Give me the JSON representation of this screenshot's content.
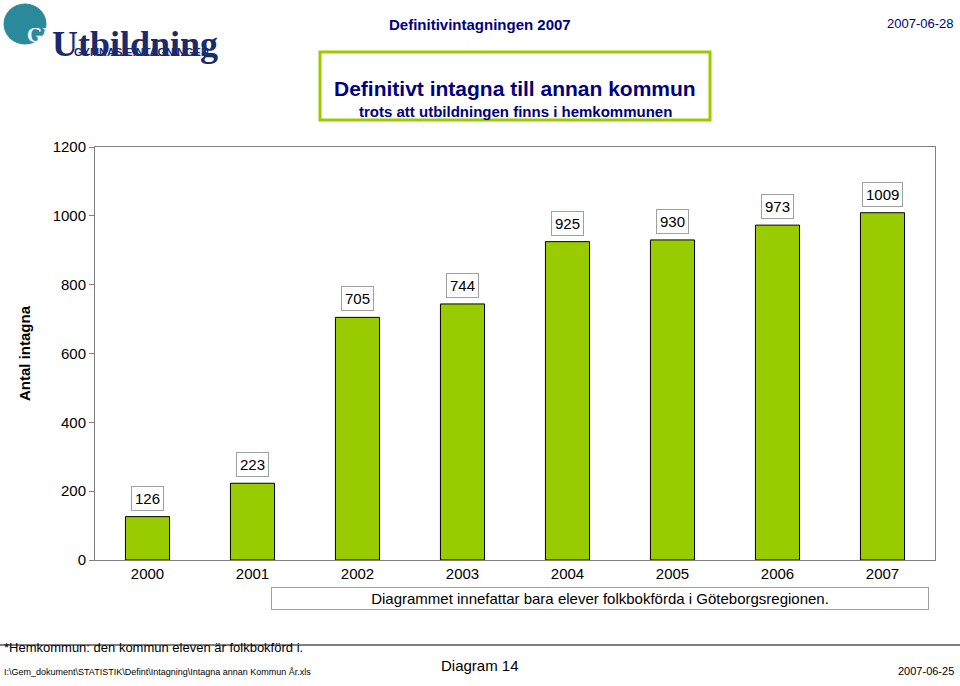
{
  "chart_data": {
    "type": "bar",
    "title": "Definitivt intagna till annan kommun",
    "subtitle": "trots att utbildningen finns i hemkommunen",
    "ylabel": "Antal intagna",
    "categories": [
      "2000",
      "2001",
      "2002",
      "2003",
      "2004",
      "2005",
      "2006",
      "2007"
    ],
    "values": [
      126,
      223,
      705,
      744,
      925,
      930,
      973,
      1009
    ],
    "color": "#99cc00",
    "ylim": [
      0,
      1200
    ],
    "yticks": [
      0,
      200,
      400,
      600,
      800,
      1000,
      1200
    ],
    "grid": false,
    "data_labels": true,
    "annotations": [
      "Diagrammet innefattar bara elever folkbokförda i Göteborgsregionen."
    ]
  },
  "page": {
    "logo_mark": "GR",
    "logo": "Utbildning",
    "logo_sub": "GYMNASIEINTAGNINGEN",
    "header": "Definitivintagningen 2007",
    "header_date": "2007-06-28",
    "footnote": "*Hemkommun: den kommun eleven är folkbokförd i.",
    "file_path": "I:\\Gem_dokument\\STATISTIK\\Defint\\Intagning\\Intagna annan Kommun År.xls",
    "diagram": "Diagram 14",
    "print_date": "2007-06-25"
  }
}
